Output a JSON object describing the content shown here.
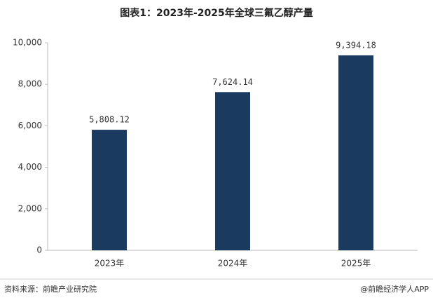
{
  "chart_data": {
    "type": "bar",
    "title": "图表1：2023年-2025年全球三氟乙醇产量",
    "categories": [
      "2023年",
      "2024年",
      "2025年"
    ],
    "values": [
      5808.12,
      7624.14,
      9394.18
    ],
    "value_labels": [
      "5,808.12",
      "7,624.14",
      "9,394.18"
    ],
    "color": "#1b3a5f",
    "ylim": [
      0,
      10000
    ],
    "yticks": [
      0,
      {
        "value": 2000,
        "label": "2,000"
      },
      {
        "value": 4000,
        "label": "4,000"
      },
      {
        "value": 6000,
        "label": "6,000"
      },
      {
        "value": 8000,
        "label": "8,000"
      },
      {
        "value": 10000,
        "label": "10,000"
      }
    ],
    "grid": false,
    "source": "资料来源：前瞻产业研究院",
    "credit": "@前瞻经济学人APP"
  }
}
